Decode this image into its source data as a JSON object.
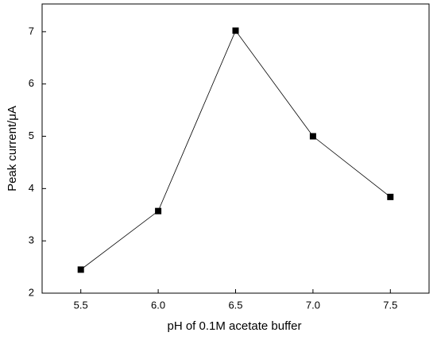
{
  "chart_data": {
    "type": "line",
    "x_label": "pH of  0.1M acetate buffer",
    "y_label": "Peak current/μA",
    "x": [
      5.5,
      6,
      6.5,
      7,
      7.5
    ],
    "series": [
      {
        "color": "#000000",
        "values": [
          2.45,
          3.57,
          7.02,
          5.0,
          3.84
        ]
      }
    ],
    "xlim": [
      5.25,
      7.75
    ],
    "xticks": [
      5.5,
      {
        "value": 6,
        "label": "6.0"
      },
      6.5,
      {
        "value": 7,
        "label": "7.0"
      },
      7.5
    ],
    "ylim": [
      2,
      7.53
    ],
    "yticks": [
      2,
      3,
      4,
      5,
      6,
      7
    ]
  }
}
